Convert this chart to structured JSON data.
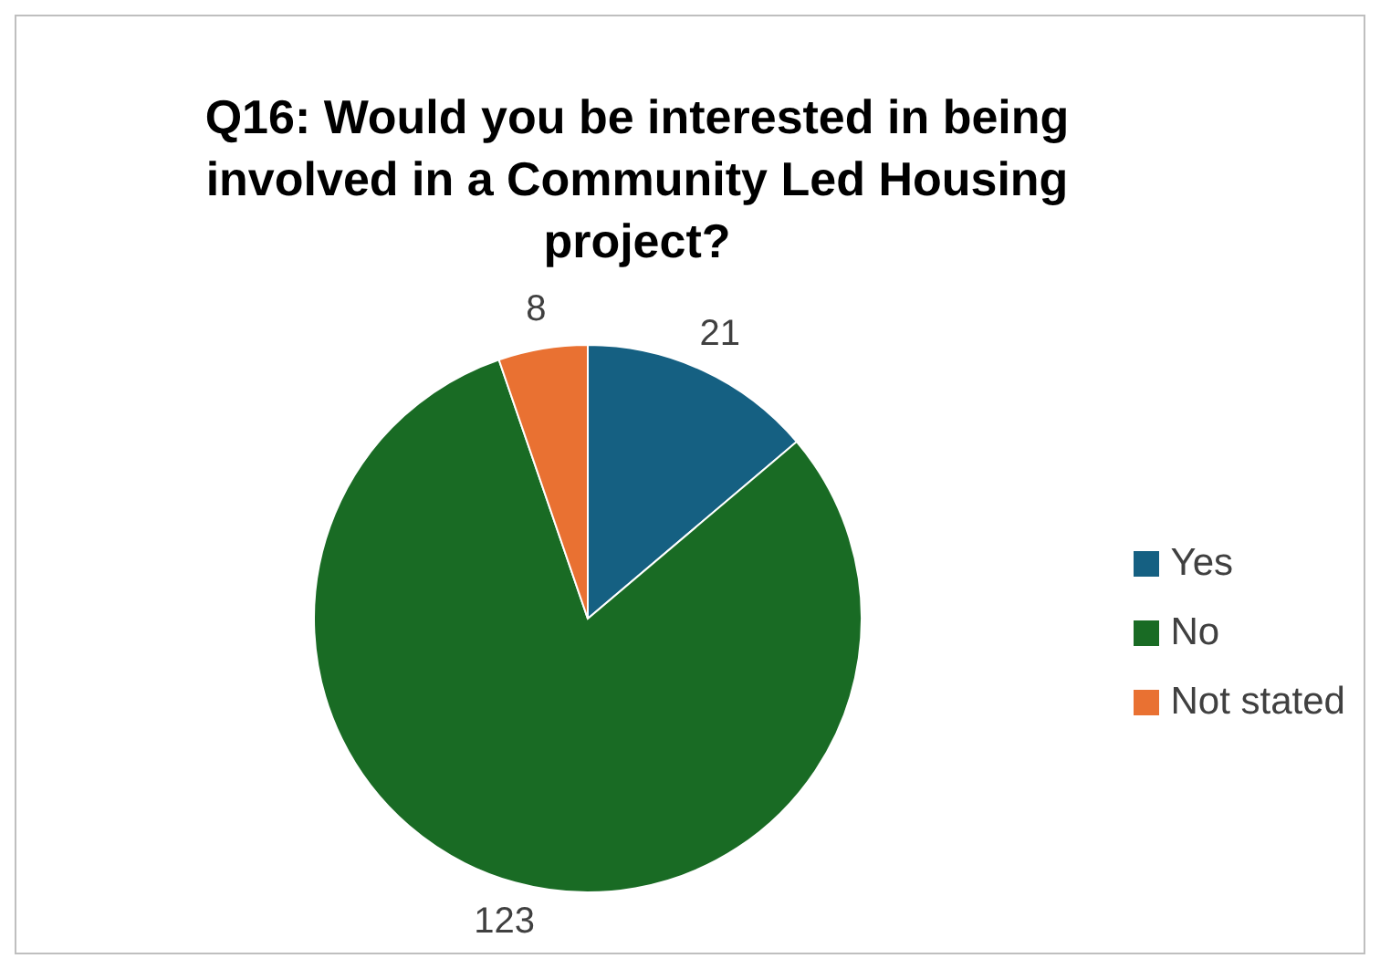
{
  "chart_data": {
    "type": "pie",
    "title": "Q16: Would you be interested in being involved in a Community Led Housing project?",
    "categories": [
      "Yes",
      "No",
      "Not stated"
    ],
    "values": [
      21,
      123,
      8
    ],
    "colors": [
      "#156082",
      "#196b24",
      "#e97132"
    ],
    "data_labels": true,
    "legend": "right"
  }
}
